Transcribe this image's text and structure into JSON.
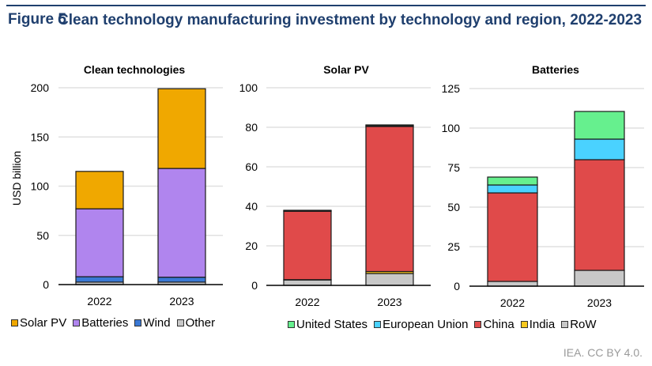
{
  "figure": {
    "label": "Figure 5",
    "title": "Clean technology manufacturing investment by technology and region, 2022-2023",
    "credit": "IEA. CC BY 4.0."
  },
  "legends": {
    "technology": [
      {
        "name": "Solar PV",
        "color": "#f0a800"
      },
      {
        "name": "Batteries",
        "color": "#b085ee"
      },
      {
        "name": "Wind",
        "color": "#3a78d4"
      },
      {
        "name": "Other",
        "color": "#c8c8c8"
      }
    ],
    "region": [
      {
        "name": "United States",
        "color": "#66f08e"
      },
      {
        "name": "European Union",
        "color": "#4ad2ff"
      },
      {
        "name": "China",
        "color": "#e04a4a"
      },
      {
        "name": "India",
        "color": "#f8c81e"
      },
      {
        "name": "RoW",
        "color": "#c8c8c8"
      }
    ]
  },
  "chart_data": [
    {
      "type": "bar",
      "stacked": true,
      "title": "Clean technologies",
      "ylabel": "USD billion",
      "xlabel": "",
      "categories": [
        "2022",
        "2023"
      ],
      "ylim": [
        0,
        200
      ],
      "yticks": [
        0,
        50,
        100,
        150,
        200
      ],
      "grid": true,
      "legend": "bottom",
      "series": [
        {
          "name": "Other",
          "color": "#c8c8c8",
          "values": [
            2.5,
            2.5
          ]
        },
        {
          "name": "Wind",
          "color": "#3a78d4",
          "values": [
            5.5,
            5
          ]
        },
        {
          "name": "Batteries",
          "color": "#b085ee",
          "values": [
            69,
            110.5
          ]
        },
        {
          "name": "Solar PV",
          "color": "#f0a800",
          "values": [
            38,
            81
          ]
        }
      ]
    },
    {
      "type": "bar",
      "stacked": true,
      "title": "Solar PV",
      "ylabel": "",
      "xlabel": "",
      "categories": [
        "2022",
        "2023"
      ],
      "ylim": [
        0,
        100
      ],
      "yticks": [
        0,
        20,
        40,
        60,
        80,
        100
      ],
      "grid": true,
      "legend": "bottom",
      "series": [
        {
          "name": "RoW",
          "color": "#c8c8c8",
          "values": [
            2.8,
            6
          ]
        },
        {
          "name": "India",
          "color": "#f8c81e",
          "values": [
            0.1,
            1
          ]
        },
        {
          "name": "China",
          "color": "#e04a4a",
          "values": [
            34.6,
            73.4
          ]
        },
        {
          "name": "European Union",
          "color": "#4ad2ff",
          "values": [
            0.2,
            0.3
          ]
        },
        {
          "name": "United States",
          "color": "#66f08e",
          "values": [
            0.3,
            0.5
          ]
        }
      ]
    },
    {
      "type": "bar",
      "stacked": true,
      "title": "Batteries",
      "ylabel": "",
      "xlabel": "",
      "categories": [
        "2022",
        "2023"
      ],
      "ylim": [
        0,
        125
      ],
      "yticks": [
        0,
        25,
        50,
        75,
        100,
        125
      ],
      "grid": true,
      "legend": "bottom",
      "series": [
        {
          "name": "RoW",
          "color": "#c8c8c8",
          "values": [
            3,
            10
          ]
        },
        {
          "name": "India",
          "color": "#f8c81e",
          "values": [
            0,
            0
          ]
        },
        {
          "name": "China",
          "color": "#e04a4a",
          "values": [
            56,
            70
          ]
        },
        {
          "name": "European Union",
          "color": "#4ad2ff",
          "values": [
            5,
            13
          ]
        },
        {
          "name": "United States",
          "color": "#66f08e",
          "values": [
            5,
            17.5
          ]
        }
      ]
    }
  ]
}
